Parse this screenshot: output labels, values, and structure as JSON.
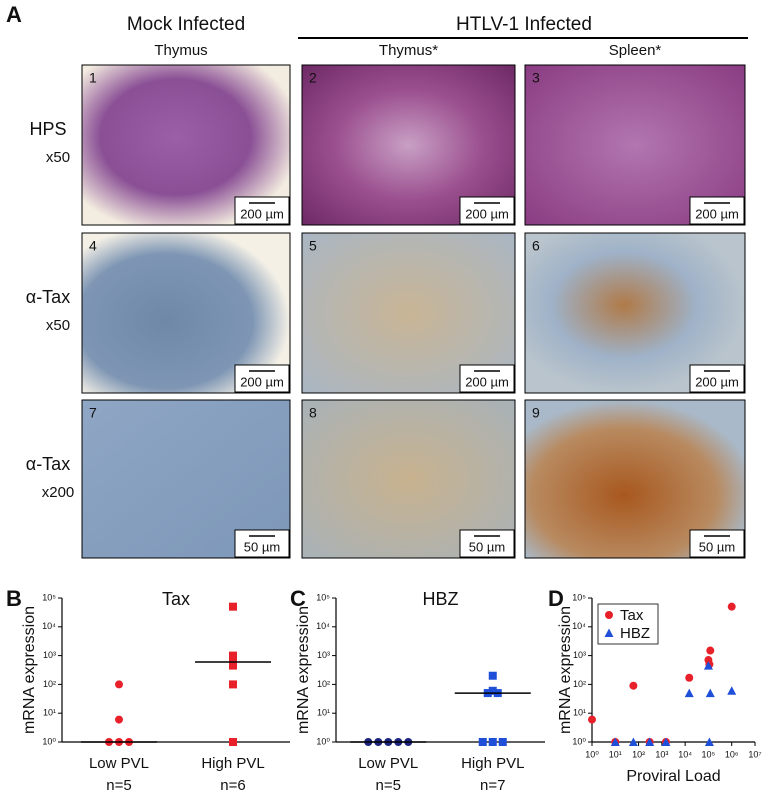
{
  "panel_a": {
    "panel_label": "A",
    "group_titles": [
      "Mock Infected",
      "HTLV-1 Infected"
    ],
    "column_titles": [
      "Thymus",
      "Thymus*",
      "Spleen*"
    ],
    "rows": [
      {
        "stain": "HPS",
        "magnification": "x50"
      },
      {
        "stain": "α-Tax",
        "magnification": "x50"
      },
      {
        "stain": "α-Tax",
        "magnification": "x200"
      }
    ],
    "panels": [
      {
        "number": "1",
        "scale": "200 µm"
      },
      {
        "number": "2",
        "scale": "200 µm"
      },
      {
        "number": "3",
        "scale": "200 µm"
      },
      {
        "number": "4",
        "scale": "200 µm"
      },
      {
        "number": "5",
        "scale": "200 µm"
      },
      {
        "number": "6",
        "scale": "200 µm"
      },
      {
        "number": "7",
        "scale": "50 µm"
      },
      {
        "number": "8",
        "scale": "50 µm"
      },
      {
        "number": "9",
        "scale": "50 µm"
      }
    ]
  },
  "chart_data": [
    {
      "type": "strip",
      "panel_label": "B",
      "title": "Tax",
      "ylabel": "mRNA expression",
      "categories": [
        "Low PVL",
        "High PVL"
      ],
      "n_labels": [
        "n=5",
        "n=6"
      ],
      "values": [
        [
          100,
          6,
          1,
          1,
          1
        ],
        [
          50000,
          1000,
          600,
          450,
          100,
          1
        ]
      ],
      "medians": [
        1,
        600
      ],
      "markers": [
        "circle",
        "square"
      ],
      "colors": [
        "#e8202a",
        "#e8202a"
      ],
      "ylog": true,
      "ylim": [
        1,
        100000
      ],
      "yticks": [
        {
          "value": 1,
          "label": "10⁰"
        },
        {
          "value": 10,
          "label": "10¹"
        },
        {
          "value": 100,
          "label": "10²"
        },
        {
          "value": 1000,
          "label": "10³"
        },
        {
          "value": 10000,
          "label": "10⁴"
        },
        {
          "value": 100000,
          "label": "10⁵"
        }
      ]
    },
    {
      "type": "strip",
      "panel_label": "C",
      "title": "HBZ",
      "ylabel": "mRNA expression",
      "categories": [
        "Low PVL",
        "High PVL"
      ],
      "n_labels": [
        "n=5",
        "n=7"
      ],
      "values": [
        [
          1,
          1,
          1,
          1,
          1
        ],
        [
          200,
          50,
          50,
          60,
          1,
          1,
          1
        ]
      ],
      "medians": [
        1,
        50
      ],
      "markers": [
        "circle",
        "square"
      ],
      "colors": [
        "#1a237e",
        "#1f4fd8"
      ],
      "ylog": true,
      "ylim": [
        1,
        100000
      ],
      "yticks": [
        {
          "value": 1,
          "label": "10⁰"
        },
        {
          "value": 10,
          "label": "10¹"
        },
        {
          "value": 100,
          "label": "10²"
        },
        {
          "value": 1000,
          "label": "10³"
        },
        {
          "value": 10000,
          "label": "10⁴"
        },
        {
          "value": 100000,
          "label": "10⁵"
        }
      ]
    },
    {
      "type": "scatter",
      "panel_label": "D",
      "ylabel": "mRNA expression",
      "xlabel": "Proviral Load",
      "series": [
        {
          "name": "Tax",
          "color": "#e8202a",
          "marker": "circle",
          "x": [
            1,
            10,
            60,
            300,
            1500,
            15000,
            100000,
            120000,
            110000,
            1000000
          ],
          "values": [
            6,
            1,
            90,
            1,
            1,
            170,
            700,
            1500,
            500,
            50000
          ]
        },
        {
          "name": "HBZ",
          "color": "#1f4fd8",
          "marker": "triangle",
          "x": [
            10,
            60,
            300,
            1500,
            15000,
            100000,
            120000,
            110000,
            1000000
          ],
          "values": [
            1,
            1,
            1,
            1,
            50,
            450,
            50,
            1,
            60
          ]
        }
      ],
      "legend": "upper left",
      "xlog": true,
      "xlim": [
        1,
        10000000
      ],
      "xticks": [
        {
          "value": 1,
          "label": "10⁰"
        },
        {
          "value": 10,
          "label": "10¹"
        },
        {
          "value": 100,
          "label": "10²"
        },
        {
          "value": 1000,
          "label": "10³"
        },
        {
          "value": 10000,
          "label": "10⁴"
        },
        {
          "value": 100000,
          "label": "10⁵"
        },
        {
          "value": 1000000,
          "label": "10⁶"
        },
        {
          "value": 10000000,
          "label": "10⁷"
        }
      ],
      "ylog": true,
      "ylim": [
        1,
        100000
      ],
      "yticks": [
        {
          "value": 1,
          "label": "10⁰"
        },
        {
          "value": 10,
          "label": "10¹"
        },
        {
          "value": 100,
          "label": "10²"
        },
        {
          "value": 1000,
          "label": "10³"
        },
        {
          "value": 10000,
          "label": "10⁴"
        },
        {
          "value": 100000,
          "label": "10⁵"
        }
      ]
    }
  ]
}
